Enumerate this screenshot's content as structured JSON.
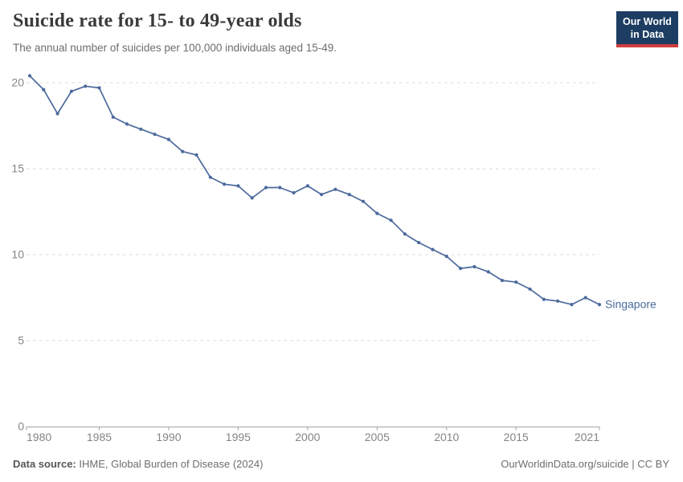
{
  "header": {
    "title": "Suicide rate for 15- to 49-year olds",
    "subtitle": "The annual number of suicides per 100,000 individuals aged 15-49.",
    "logo": {
      "line1": "Our World",
      "line2": "in Data",
      "bg_color": "#1d3d63",
      "bar_color": "#d13c3c"
    }
  },
  "chart_data": {
    "type": "line",
    "title": "Suicide rate for 15- to 49-year olds",
    "xlabel": "",
    "ylabel": "",
    "xlim": [
      1980,
      2021
    ],
    "ylim": [
      0,
      20.5
    ],
    "x_ticks": [
      1980,
      1985,
      1990,
      1995,
      2000,
      2005,
      2010,
      2015,
      2021
    ],
    "y_ticks": [
      0,
      5,
      10,
      15,
      20
    ],
    "grid": "horizontal-dashed",
    "grid_color": "#dedede",
    "axis_color": "#a3a3a3",
    "tick_label_color": "#858585",
    "legend_position": "end-of-line",
    "end_label": "Singapore",
    "series": [
      {
        "name": "Singapore",
        "color": "#4c6a9c",
        "x": [
          1980,
          1981,
          1982,
          1983,
          1984,
          1985,
          1986,
          1987,
          1988,
          1989,
          1990,
          1991,
          1992,
          1993,
          1994,
          1995,
          1996,
          1997,
          1998,
          1999,
          2000,
          2001,
          2002,
          2003,
          2004,
          2005,
          2006,
          2007,
          2008,
          2009,
          2010,
          2011,
          2012,
          2013,
          2014,
          2015,
          2016,
          2017,
          2018,
          2019,
          2020,
          2021
        ],
        "values": [
          20.4,
          19.6,
          18.2,
          19.5,
          19.8,
          19.7,
          18.0,
          17.6,
          17.3,
          17.0,
          16.7,
          16.0,
          15.8,
          14.5,
          14.1,
          14.0,
          13.3,
          13.9,
          13.9,
          13.6,
          14.0,
          13.5,
          13.8,
          13.5,
          13.1,
          12.4,
          12.0,
          11.2,
          10.7,
          10.3,
          9.9,
          9.2,
          9.3,
          9.0,
          8.5,
          8.4,
          8.0,
          7.4,
          7.3,
          7.1,
          7.5,
          7.1
        ]
      }
    ]
  },
  "footer": {
    "source_label": "Data source:",
    "source_value": " IHME, Global Burden of Disease (2024)",
    "attribution": "OurWorldinData.org/suicide | CC BY"
  }
}
